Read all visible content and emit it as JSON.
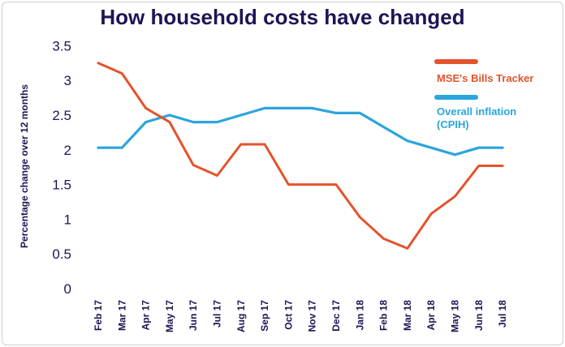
{
  "chart_data": {
    "type": "line",
    "title": "How household costs have changed",
    "xlabel": "",
    "ylabel": "Percentage change over 12 months",
    "ylim": [
      0,
      3.5
    ],
    "yticks": [
      "0",
      "0.5",
      "1",
      "1.5",
      "2",
      "2.5",
      "3",
      "3.5"
    ],
    "categories": [
      "Feb 17",
      "Mar 17",
      "Apr 17",
      "May 17",
      "Jun 17",
      "Jul 17",
      "Aug 17",
      "Sep 17",
      "Oct 17",
      "Nov 17",
      "Dec 17",
      "Jan 18",
      "Feb 18",
      "Mar 18",
      "Apr 18",
      "May 18",
      "Jun 18",
      "Jul 18"
    ],
    "series": [
      {
        "name": "MSE's Bills Tracker",
        "color": "#e4532c",
        "values": [
          3.25,
          3.1,
          2.6,
          2.4,
          1.78,
          1.63,
          2.08,
          2.08,
          1.5,
          1.5,
          1.5,
          1.03,
          0.72,
          0.58,
          1.08,
          1.33,
          1.77,
          1.77
        ]
      },
      {
        "name": "Overall inflation (CPIH)",
        "color": "#2aa5dd",
        "values": [
          2.03,
          2.03,
          2.4,
          2.5,
          2.4,
          2.4,
          2.5,
          2.6,
          2.6,
          2.6,
          2.53,
          2.53,
          2.33,
          2.13,
          2.03,
          1.93,
          2.03,
          2.03
        ]
      }
    ],
    "legend": {
      "placement": "top-right",
      "labels": [
        "MSE's Bills Tracker",
        "Overall inflation (CPIH)"
      ]
    }
  }
}
